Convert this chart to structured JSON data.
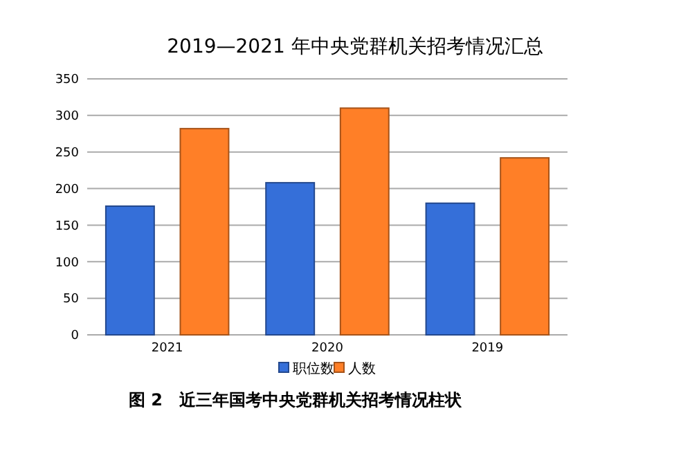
{
  "chart_data": {
    "type": "bar",
    "title": "2019—2021 年中央党群机关招考情况汇总",
    "categories": [
      "2021",
      "2020",
      "2019"
    ],
    "series": [
      {
        "name": "职位数",
        "color": "#356fd9",
        "values": [
          176,
          208,
          180
        ]
      },
      {
        "name": "人数",
        "color": "#ff7f27",
        "values": [
          282,
          310,
          242
        ]
      }
    ],
    "ylim": [
      0,
      350
    ],
    "yticks": [
      0,
      50,
      100,
      150,
      200,
      250,
      300,
      350
    ],
    "grid": "y",
    "legend": "bottom",
    "annotations": [
      "图 2　近三年国考中央党群机关招考情况柱状"
    ]
  }
}
